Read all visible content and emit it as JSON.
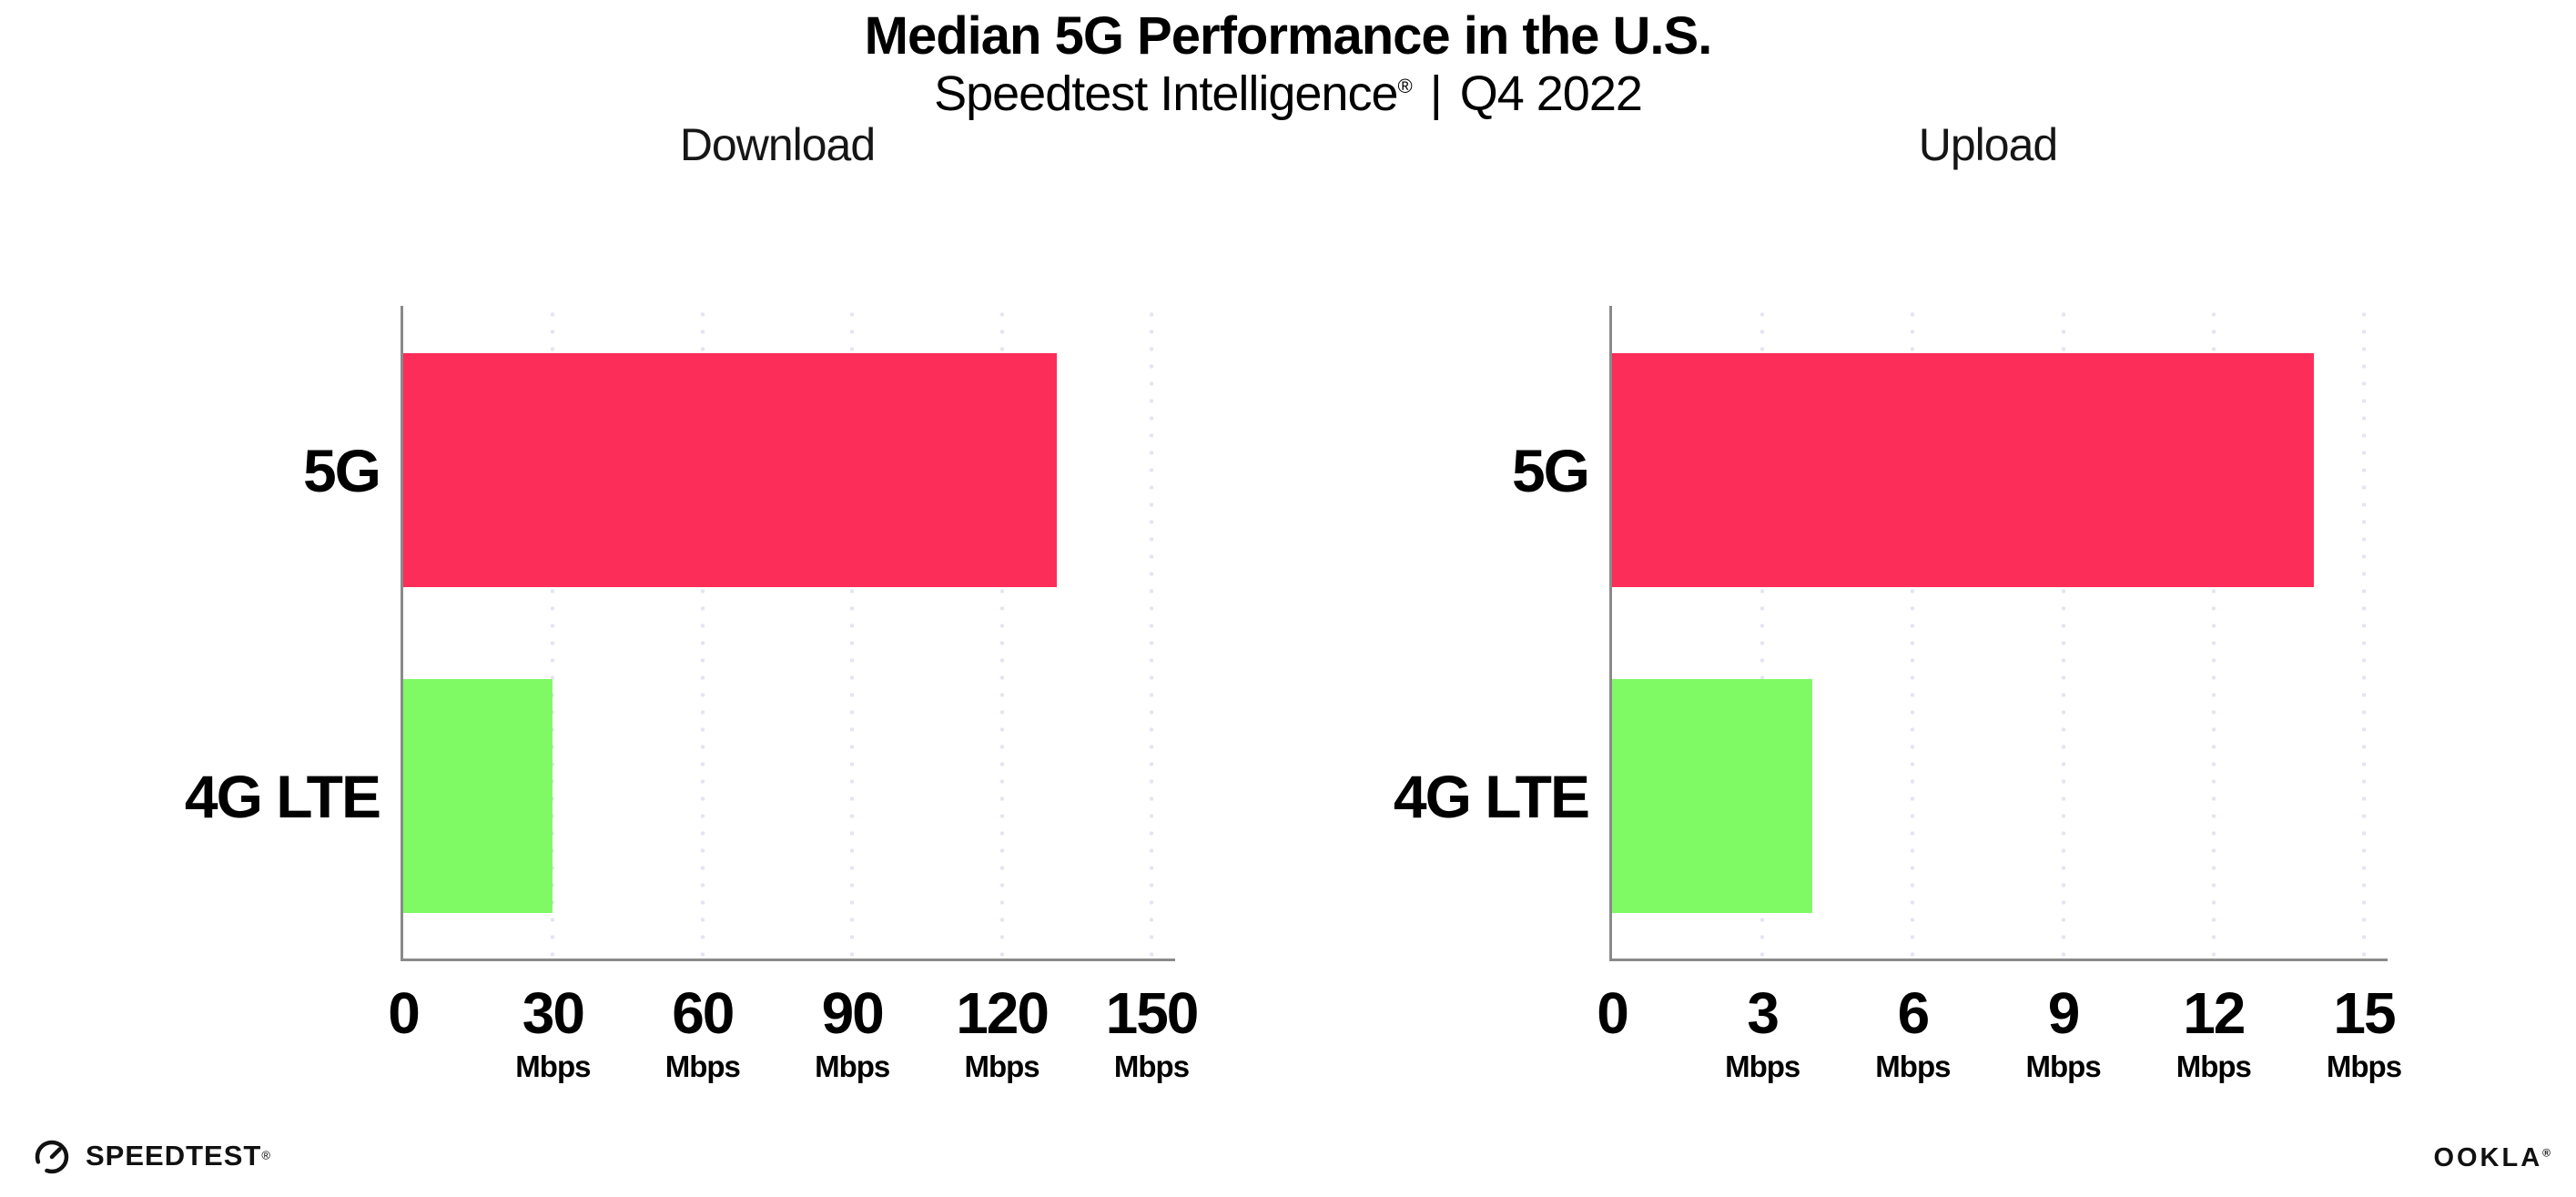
{
  "header": {
    "title": "Median 5G Performance in the U.S.",
    "subtitle_brand": "Speedtest Intelligence",
    "subtitle_reg": "®",
    "subtitle_sep": "|",
    "subtitle_period": "Q4 2022"
  },
  "chart_data": [
    {
      "type": "bar",
      "orientation": "horizontal",
      "title": "Download",
      "categories": [
        "5G",
        "4G LTE"
      ],
      "values": [
        131,
        30
      ],
      "unit": "Mbps",
      "xlim": [
        0,
        150
      ],
      "xticks": [
        0,
        30,
        60,
        90,
        120,
        150
      ],
      "grid": "dotted-vertical",
      "legend": "none",
      "series_colors": [
        "#FC2D58",
        "#7FFA65"
      ]
    },
    {
      "type": "bar",
      "orientation": "horizontal",
      "title": "Upload",
      "categories": [
        "5G",
        "4G LTE"
      ],
      "values": [
        14,
        4
      ],
      "unit": "Mbps",
      "xlim": [
        0,
        15
      ],
      "xticks": [
        0,
        3,
        6,
        9,
        12,
        15
      ],
      "grid": "dotted-vertical",
      "legend": "none",
      "series_colors": [
        "#FC2D58",
        "#7FFA65"
      ]
    }
  ],
  "colors": {
    "bar_5g": "#FC2D58",
    "bar_4g_lte": "#7FFA65",
    "axis": "#8A8A8A",
    "grid_dot": "#E3E5F1",
    "text": "#000000"
  },
  "footer": {
    "speedtest_label": "SPEEDTEST",
    "speedtest_reg": "®",
    "ookla_label": "OOKLA",
    "ookla_reg": "®"
  }
}
